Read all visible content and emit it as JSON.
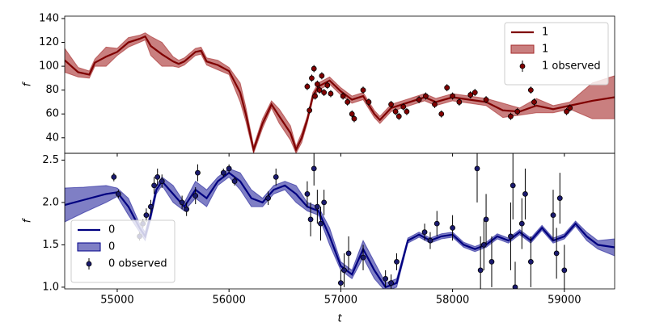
{
  "chart_data": [
    {
      "type": "line",
      "ylabel": "f",
      "xlim": [
        54530,
        59450
      ],
      "ylim": [
        27,
        142
      ],
      "xticks": [
        55000,
        56000,
        57000,
        58000,
        59000
      ],
      "show_xtick_labels": false,
      "yticks": [
        40,
        60,
        80,
        100,
        120,
        140
      ],
      "legend": "upper right",
      "series": [
        {
          "name": "1",
          "type": "line",
          "color": "#7f0000",
          "x": [
            54530,
            54650,
            54750,
            54800,
            54900,
            55000,
            55100,
            55200,
            55250,
            55300,
            55400,
            55500,
            55550,
            55600,
            55700,
            55750,
            55800,
            55900,
            56000,
            56100,
            56150,
            56220,
            56300,
            56380,
            56450,
            56550,
            56600,
            56650,
            56700,
            56750,
            56800,
            56900,
            57000,
            57100,
            57200,
            57300,
            57350,
            57450,
            57550,
            57650,
            57750,
            57850,
            58000,
            58150,
            58300,
            58450,
            58600,
            58750,
            58900,
            59050,
            59250,
            59450
          ],
          "values": [
            105,
            95,
            93,
            103,
            108,
            112,
            120,
            123,
            125,
            117,
            110,
            104,
            102,
            104,
            112,
            113,
            104,
            101,
            96,
            78,
            60,
            30,
            52,
            68,
            58,
            44,
            30,
            40,
            55,
            75,
            83,
            88,
            79,
            72,
            75,
            60,
            55,
            65,
            68,
            71,
            74,
            70,
            74,
            72,
            70,
            63,
            62,
            67,
            64,
            67,
            71,
            74
          ]
        },
        {
          "name": "1",
          "type": "band",
          "color": "#a52a2a",
          "opacity": 0.6,
          "x": [
            54530,
            54650,
            54750,
            54800,
            54900,
            55000,
            55100,
            55200,
            55250,
            55300,
            55400,
            55500,
            55550,
            55600,
            55700,
            55750,
            55800,
            55900,
            56000,
            56100,
            56150,
            56220,
            56300,
            56380,
            56450,
            56550,
            56600,
            56650,
            56700,
            56750,
            56800,
            56900,
            57000,
            57100,
            57200,
            57300,
            57350,
            57450,
            57550,
            57650,
            57750,
            57850,
            58000,
            58150,
            58300,
            58450,
            58600,
            58750,
            58900,
            59050,
            59250,
            59450
          ],
          "lower": [
            95,
            91,
            90,
            100,
            100,
            109,
            116,
            120,
            122,
            109,
            100,
            100,
            99,
            101,
            109,
            110,
            101,
            97,
            93,
            70,
            54,
            27,
            48,
            65,
            52,
            38,
            27,
            36,
            52,
            72,
            80,
            85,
            76,
            69,
            72,
            57,
            52,
            62,
            65,
            68,
            71,
            67,
            71,
            69,
            67,
            57,
            59,
            61,
            61,
            64,
            56,
            56
          ],
          "upper": [
            115,
            99,
            96,
            106,
            116,
            115,
            124,
            126,
            128,
            125,
            120,
            108,
            105,
            107,
            115,
            116,
            107,
            105,
            99,
            86,
            66,
            33,
            56,
            71,
            64,
            50,
            33,
            44,
            58,
            78,
            86,
            91,
            82,
            75,
            78,
            63,
            58,
            68,
            71,
            74,
            77,
            73,
            77,
            75,
            73,
            69,
            65,
            73,
            67,
            70,
            86,
            92
          ]
        },
        {
          "name": "1 observed",
          "type": "errorbar",
          "color": "#800000",
          "x": [
            56700,
            56720,
            56740,
            56760,
            56770,
            56790,
            56810,
            56830,
            56850,
            56880,
            56910,
            57020,
            57060,
            57100,
            57120,
            57200,
            57250,
            57450,
            57490,
            57520,
            57560,
            57590,
            57700,
            57760,
            57840,
            57900,
            57950,
            58000,
            58060,
            58160,
            58200,
            58300,
            58520,
            58580,
            58700,
            58730,
            59020,
            59050
          ],
          "values": [
            83,
            63,
            90,
            98,
            75,
            85,
            80,
            92,
            78,
            84,
            77,
            75,
            70,
            60,
            56,
            80,
            70,
            68,
            62,
            58,
            66,
            62,
            72,
            75,
            68,
            60,
            82,
            75,
            70,
            76,
            78,
            72,
            58,
            62,
            80,
            70,
            62,
            65
          ],
          "errors": [
            3,
            3,
            3,
            3,
            3,
            3,
            3,
            3,
            3,
            3,
            3,
            3,
            3,
            3,
            3,
            3,
            3,
            3,
            3,
            3,
            3,
            3,
            3,
            3,
            3,
            3,
            3,
            3,
            3,
            3,
            3,
            3,
            3,
            3,
            3,
            3,
            3,
            3
          ]
        }
      ]
    },
    {
      "type": "line",
      "xlabel": "t",
      "ylabel": "f",
      "xlim": [
        54530,
        59450
      ],
      "ylim": [
        0.98,
        2.58
      ],
      "xticks": [
        55000,
        56000,
        57000,
        58000,
        59000
      ],
      "show_xtick_labels": true,
      "yticks": [
        {
          "value": 1,
          "label": "1.0"
        },
        {
          "value": 1.5,
          "label": "1.5"
        },
        {
          "value": 2,
          "label": "2.0"
        },
        {
          "value": 2.5,
          "label": "2.5"
        }
      ],
      "legend": "lower left",
      "series": [
        {
          "name": "0",
          "type": "line",
          "color": "#000080",
          "x": [
            54530,
            54700,
            54900,
            55000,
            55100,
            55200,
            55250,
            55300,
            55350,
            55400,
            55500,
            55600,
            55700,
            55800,
            55900,
            56000,
            56100,
            56200,
            56300,
            56400,
            56500,
            56600,
            56700,
            56800,
            56900,
            57000,
            57100,
            57200,
            57300,
            57400,
            57500,
            57600,
            57700,
            57800,
            57900,
            58000,
            58100,
            58200,
            58300,
            58400,
            58500,
            58600,
            58700,
            58800,
            58900,
            59000,
            59100,
            59200,
            59300,
            59450
          ],
          "values": [
            1.97,
            2.03,
            2.1,
            2.12,
            1.95,
            1.7,
            1.6,
            1.85,
            2.15,
            2.25,
            2.1,
            1.95,
            2.15,
            2.05,
            2.25,
            2.35,
            2.25,
            2.05,
            2.0,
            2.15,
            2.2,
            2.1,
            1.95,
            1.9,
            1.6,
            1.25,
            1.15,
            1.45,
            1.2,
            1.0,
            1.05,
            1.55,
            1.62,
            1.55,
            1.6,
            1.62,
            1.5,
            1.45,
            1.5,
            1.6,
            1.55,
            1.65,
            1.55,
            1.7,
            1.55,
            1.6,
            1.75,
            1.6,
            1.5,
            1.47
          ]
        },
        {
          "name": "0",
          "type": "band",
          "color": "#00008b",
          "opacity": 0.5,
          "x": [
            54530,
            54700,
            54900,
            55000,
            55100,
            55200,
            55250,
            55300,
            55350,
            55400,
            55500,
            55600,
            55700,
            55800,
            55900,
            56000,
            56100,
            56200,
            56300,
            56400,
            56500,
            56600,
            56700,
            56800,
            56900,
            57000,
            57100,
            57200,
            57300,
            57400,
            57500,
            57600,
            57700,
            57800,
            57900,
            58000,
            58100,
            58200,
            58300,
            58400,
            58500,
            58600,
            58700,
            58800,
            58900,
            59000,
            59100,
            59200,
            59300,
            59450
          ],
          "lower": [
            1.77,
            1.88,
            2.0,
            2.07,
            1.85,
            1.65,
            1.55,
            1.8,
            2.1,
            2.2,
            2.0,
            1.9,
            2.05,
            1.95,
            2.2,
            2.3,
            2.15,
            1.95,
            1.95,
            2.1,
            2.15,
            2.0,
            1.9,
            1.85,
            1.5,
            1.2,
            1.1,
            1.35,
            1.1,
            0.95,
            1.0,
            1.52,
            1.59,
            1.52,
            1.57,
            1.59,
            1.47,
            1.42,
            1.47,
            1.57,
            1.52,
            1.62,
            1.52,
            1.67,
            1.52,
            1.57,
            1.72,
            1.55,
            1.45,
            1.37
          ],
          "upper": [
            2.17,
            2.18,
            2.2,
            2.17,
            2.05,
            1.75,
            1.65,
            1.9,
            2.2,
            2.3,
            2.2,
            2.0,
            2.25,
            2.15,
            2.3,
            2.4,
            2.35,
            2.15,
            2.05,
            2.2,
            2.25,
            2.2,
            2.0,
            1.95,
            1.7,
            1.3,
            1.2,
            1.55,
            1.3,
            1.05,
            1.1,
            1.58,
            1.65,
            1.58,
            1.63,
            1.65,
            1.53,
            1.48,
            1.53,
            1.63,
            1.58,
            1.68,
            1.58,
            1.73,
            1.58,
            1.63,
            1.78,
            1.65,
            1.55,
            1.57
          ]
        },
        {
          "name": "0 observed",
          "type": "errorbar",
          "color": "#1a1a6e",
          "x": [
            54970,
            55010,
            55200,
            55230,
            55260,
            55300,
            55330,
            55360,
            55400,
            55580,
            55620,
            55700,
            55720,
            55950,
            56000,
            56050,
            56350,
            56420,
            56700,
            56730,
            56760,
            56790,
            56820,
            56850,
            57000,
            57030,
            57070,
            57200,
            57400,
            57450,
            57500,
            57750,
            57800,
            57860,
            58000,
            58220,
            58250,
            58280,
            58300,
            58350,
            58520,
            58540,
            58560,
            58620,
            58650,
            58700,
            58900,
            58930,
            58960,
            59000
          ],
          "values": [
            2.3,
            2.1,
            1.6,
            1.75,
            1.85,
            1.95,
            2.2,
            2.3,
            2.25,
            2.0,
            1.92,
            2.08,
            2.35,
            2.35,
            2.4,
            2.25,
            2.05,
            2.3,
            2.1,
            1.8,
            2.4,
            1.95,
            1.75,
            2.0,
            1.05,
            1.2,
            1.4,
            1.35,
            1.1,
            1.05,
            1.3,
            1.65,
            1.55,
            1.75,
            1.7,
            2.4,
            1.2,
            1.5,
            1.8,
            1.3,
            1.6,
            2.2,
            1.0,
            1.75,
            2.1,
            1.3,
            1.85,
            1.4,
            2.05,
            1.2
          ],
          "errors": [
            0.05,
            0.05,
            0.05,
            0.05,
            0.08,
            0.08,
            0.1,
            0.1,
            0.08,
            0.08,
            0.08,
            0.1,
            0.1,
            0.05,
            0.05,
            0.05,
            0.08,
            0.1,
            0.15,
            0.2,
            0.2,
            0.2,
            0.2,
            0.15,
            0.15,
            0.2,
            0.2,
            0.15,
            0.1,
            0.1,
            0.1,
            0.1,
            0.1,
            0.15,
            0.15,
            0.4,
            0.4,
            0.3,
            0.3,
            0.3,
            0.4,
            0.4,
            0.3,
            0.3,
            0.3,
            0.3,
            0.3,
            0.3,
            0.3,
            0.3
          ]
        }
      ]
    }
  ]
}
